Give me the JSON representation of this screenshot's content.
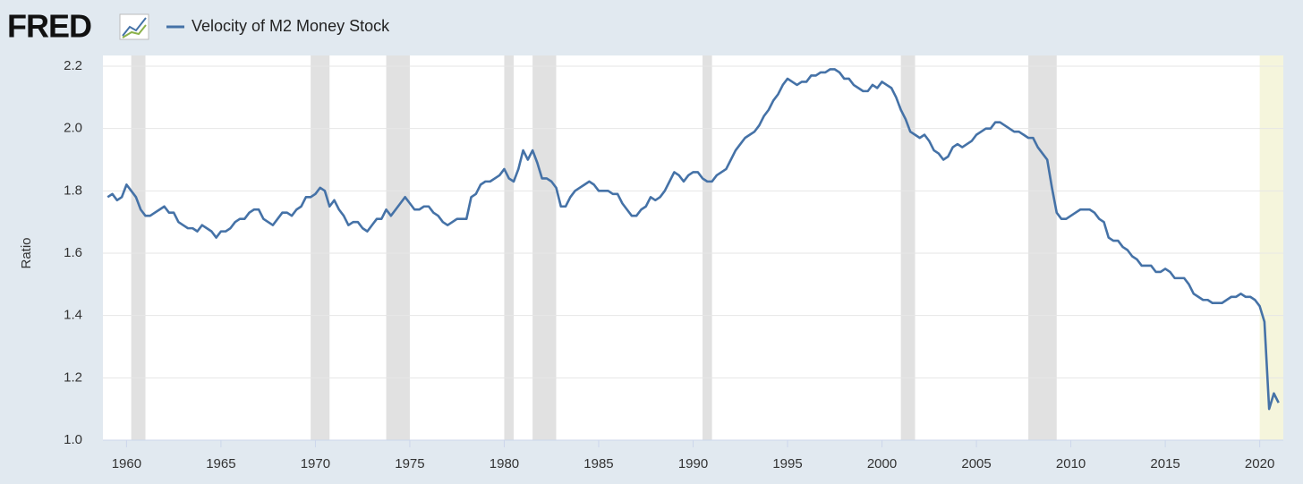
{
  "chart_data": {
    "type": "line",
    "logo": "FRED",
    "ylabel": "Ratio",
    "xlim": [
      1958.75,
      2021.25
    ],
    "ylim": [
      1.0,
      2.2
    ],
    "xticks": [
      1960,
      1965,
      1970,
      1975,
      1980,
      1985,
      1990,
      1995,
      2000,
      2005,
      2010,
      2015,
      2020
    ],
    "yticks": [
      {
        "value": 1.0,
        "label": "1.0"
      },
      1.2,
      1.4,
      1.6,
      1.8,
      {
        "value": 2.0,
        "label": "2.0"
      },
      2.2
    ],
    "grid": true,
    "shading": [
      {
        "start": 1960.25,
        "end": 1961.0,
        "color": "#e1e1e1"
      },
      {
        "start": 1969.75,
        "end": 1970.75,
        "color": "#e1e1e1"
      },
      {
        "start": 1973.75,
        "end": 1975.0,
        "color": "#e1e1e1"
      },
      {
        "start": 1980.0,
        "end": 1980.5,
        "color": "#e1e1e1"
      },
      {
        "start": 1981.5,
        "end": 1982.75,
        "color": "#e1e1e1"
      },
      {
        "start": 1990.5,
        "end": 1991.0,
        "color": "#e1e1e1"
      },
      {
        "start": 2001.0,
        "end": 2001.75,
        "color": "#e1e1e1"
      },
      {
        "start": 2007.75,
        "end": 2009.25,
        "color": "#e1e1e1"
      },
      {
        "start": 2020.0,
        "end": 2021.25,
        "color": "#f5f5dc"
      }
    ],
    "x": [
      1959,
      1959.25,
      1959.5,
      1959.75,
      1960,
      1960.25,
      1960.5,
      1960.75,
      1961,
      1961.25,
      1961.5,
      1961.75,
      1962,
      1962.25,
      1962.5,
      1962.75,
      1963,
      1963.25,
      1963.5,
      1963.75,
      1964,
      1964.25,
      1964.5,
      1964.75,
      1965,
      1965.25,
      1965.5,
      1965.75,
      1966,
      1966.25,
      1966.5,
      1966.75,
      1967,
      1967.25,
      1967.5,
      1967.75,
      1968,
      1968.25,
      1968.5,
      1968.75,
      1969,
      1969.25,
      1969.5,
      1969.75,
      1970,
      1970.25,
      1970.5,
      1970.75,
      1971,
      1971.25,
      1971.5,
      1971.75,
      1972,
      1972.25,
      1972.5,
      1972.75,
      1973,
      1973.25,
      1973.5,
      1973.75,
      1974,
      1974.25,
      1974.5,
      1974.75,
      1975,
      1975.25,
      1975.5,
      1975.75,
      1976,
      1976.25,
      1976.5,
      1976.75,
      1977,
      1977.25,
      1977.5,
      1977.75,
      1978,
      1978.25,
      1978.5,
      1978.75,
      1979,
      1979.25,
      1979.5,
      1979.75,
      1980,
      1980.25,
      1980.5,
      1980.75,
      1981,
      1981.25,
      1981.5,
      1981.75,
      1982,
      1982.25,
      1982.5,
      1982.75,
      1983,
      1983.25,
      1983.5,
      1983.75,
      1984,
      1984.25,
      1984.5,
      1984.75,
      1985,
      1985.25,
      1985.5,
      1985.75,
      1986,
      1986.25,
      1986.5,
      1986.75,
      1987,
      1987.25,
      1987.5,
      1987.75,
      1988,
      1988.25,
      1988.5,
      1988.75,
      1989,
      1989.25,
      1989.5,
      1989.75,
      1990,
      1990.25,
      1990.5,
      1990.75,
      1991,
      1991.25,
      1991.5,
      1991.75,
      1992,
      1992.25,
      1992.5,
      1992.75,
      1993,
      1993.25,
      1993.5,
      1993.75,
      1994,
      1994.25,
      1994.5,
      1994.75,
      1995,
      1995.25,
      1995.5,
      1995.75,
      1996,
      1996.25,
      1996.5,
      1996.75,
      1997,
      1997.25,
      1997.5,
      1997.75,
      1998,
      1998.25,
      1998.5,
      1998.75,
      1999,
      1999.25,
      1999.5,
      1999.75,
      2000,
      2000.25,
      2000.5,
      2000.75,
      2001,
      2001.25,
      2001.5,
      2001.75,
      2002,
      2002.25,
      2002.5,
      2002.75,
      2003,
      2003.25,
      2003.5,
      2003.75,
      2004,
      2004.25,
      2004.5,
      2004.75,
      2005,
      2005.25,
      2005.5,
      2005.75,
      2006,
      2006.25,
      2006.5,
      2006.75,
      2007,
      2007.25,
      2007.5,
      2007.75,
      2008,
      2008.25,
      2008.5,
      2008.75,
      2009,
      2009.25,
      2009.5,
      2009.75,
      2010,
      2010.25,
      2010.5,
      2010.75,
      2011,
      2011.25,
      2011.5,
      2011.75,
      2012,
      2012.25,
      2012.5,
      2012.75,
      2013,
      2013.25,
      2013.5,
      2013.75,
      2014,
      2014.25,
      2014.5,
      2014.75,
      2015,
      2015.25,
      2015.5,
      2015.75,
      2016,
      2016.25,
      2016.5,
      2016.75,
      2017,
      2017.25,
      2017.5,
      2017.75,
      2018,
      2018.25,
      2018.5,
      2018.75,
      2019,
      2019.25,
      2019.5,
      2019.75,
      2020,
      2020.25,
      2020.5,
      2020.75,
      2021
    ],
    "series": [
      {
        "name": "Velocity of M2 Money Stock",
        "color": "#4572a7",
        "values": [
          1.78,
          1.79,
          1.77,
          1.78,
          1.82,
          1.8,
          1.78,
          1.74,
          1.72,
          1.72,
          1.73,
          1.74,
          1.75,
          1.73,
          1.73,
          1.7,
          1.69,
          1.68,
          1.68,
          1.67,
          1.69,
          1.68,
          1.67,
          1.65,
          1.67,
          1.67,
          1.68,
          1.7,
          1.71,
          1.71,
          1.73,
          1.74,
          1.74,
          1.71,
          1.7,
          1.69,
          1.71,
          1.73,
          1.73,
          1.72,
          1.74,
          1.75,
          1.78,
          1.78,
          1.79,
          1.81,
          1.8,
          1.75,
          1.77,
          1.74,
          1.72,
          1.69,
          1.7,
          1.7,
          1.68,
          1.67,
          1.69,
          1.71,
          1.71,
          1.74,
          1.72,
          1.74,
          1.76,
          1.78,
          1.76,
          1.74,
          1.74,
          1.75,
          1.75,
          1.73,
          1.72,
          1.7,
          1.69,
          1.7,
          1.71,
          1.71,
          1.71,
          1.78,
          1.79,
          1.82,
          1.83,
          1.83,
          1.84,
          1.85,
          1.87,
          1.84,
          1.83,
          1.87,
          1.93,
          1.9,
          1.93,
          1.89,
          1.84,
          1.84,
          1.83,
          1.81,
          1.75,
          1.75,
          1.78,
          1.8,
          1.81,
          1.82,
          1.83,
          1.82,
          1.8,
          1.8,
          1.8,
          1.79,
          1.79,
          1.76,
          1.74,
          1.72,
          1.72,
          1.74,
          1.75,
          1.78,
          1.77,
          1.78,
          1.8,
          1.83,
          1.86,
          1.85,
          1.83,
          1.85,
          1.86,
          1.86,
          1.84,
          1.83,
          1.83,
          1.85,
          1.86,
          1.87,
          1.9,
          1.93,
          1.95,
          1.97,
          1.98,
          1.99,
          2.01,
          2.04,
          2.06,
          2.09,
          2.11,
          2.14,
          2.16,
          2.15,
          2.14,
          2.15,
          2.15,
          2.17,
          2.17,
          2.18,
          2.18,
          2.19,
          2.19,
          2.18,
          2.16,
          2.16,
          2.14,
          2.13,
          2.12,
          2.12,
          2.14,
          2.13,
          2.15,
          2.14,
          2.13,
          2.1,
          2.06,
          2.03,
          1.99,
          1.98,
          1.97,
          1.98,
          1.96,
          1.93,
          1.92,
          1.9,
          1.91,
          1.94,
          1.95,
          1.94,
          1.95,
          1.96,
          1.98,
          1.99,
          2.0,
          2.0,
          2.02,
          2.02,
          2.01,
          2.0,
          1.99,
          1.99,
          1.98,
          1.97,
          1.97,
          1.94,
          1.92,
          1.9,
          1.81,
          1.73,
          1.71,
          1.71,
          1.72,
          1.73,
          1.74,
          1.74,
          1.74,
          1.73,
          1.71,
          1.7,
          1.65,
          1.64,
          1.64,
          1.62,
          1.61,
          1.59,
          1.58,
          1.56,
          1.56,
          1.56,
          1.54,
          1.54,
          1.55,
          1.54,
          1.52,
          1.52,
          1.52,
          1.5,
          1.47,
          1.46,
          1.45,
          1.45,
          1.44,
          1.44,
          1.44,
          1.45,
          1.46,
          1.46,
          1.47,
          1.46,
          1.46,
          1.45,
          1.43,
          1.38,
          1.1,
          1.15,
          1.12
        ]
      }
    ]
  }
}
